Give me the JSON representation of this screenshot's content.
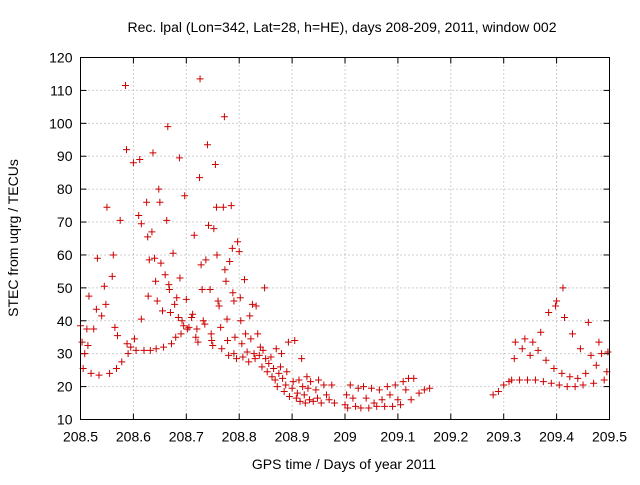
{
  "chart_data": {
    "type": "scatter",
    "title": "Rec. lpal (Lon=342, Lat=28, h=HE), days 208-209, 2011, window 002",
    "xlabel": "GPS time / Days of year 2011",
    "ylabel": "STEC from uqrg / TECUs",
    "xlim": [
      208.5,
      209.5
    ],
    "ylim": [
      10,
      120
    ],
    "xticks": [
      208.5,
      208.6,
      208.7,
      208.8,
      208.9,
      209,
      209.1,
      209.2,
      209.3,
      209.4,
      209.5
    ],
    "xtick_labels": [
      "208.5",
      "208.6",
      "208.7",
      "208.8",
      "208.9",
      "209",
      "209.1",
      "209.2",
      "209.3",
      "209.4",
      "209.5"
    ],
    "yticks": [
      10,
      20,
      30,
      40,
      50,
      60,
      70,
      80,
      90,
      100,
      110,
      120
    ],
    "ytick_labels": [
      "10",
      "20",
      "30",
      "40",
      "50",
      "60",
      "70",
      "80",
      "90",
      "100",
      "110",
      "120"
    ],
    "grid": true,
    "marker": "+",
    "color": "#cc0000",
    "series": [
      {
        "name": "STEC",
        "points": [
          [
            208.5,
            38.5
          ],
          [
            208.503,
            33.5
          ],
          [
            208.505,
            25.5
          ],
          [
            208.508,
            30.0
          ],
          [
            208.512,
            37.5
          ],
          [
            208.514,
            32.5
          ],
          [
            208.516,
            47.5
          ],
          [
            208.52,
            24.0
          ],
          [
            208.525,
            37.5
          ],
          [
            208.53,
            43.5
          ],
          [
            208.532,
            59.0
          ],
          [
            208.535,
            23.5
          ],
          [
            208.54,
            41.5
          ],
          [
            208.545,
            50.5
          ],
          [
            208.548,
            45.0
          ],
          [
            208.55,
            74.5
          ],
          [
            208.555,
            24.0
          ],
          [
            208.56,
            53.5
          ],
          [
            208.562,
            60.0
          ],
          [
            208.565,
            38.0
          ],
          [
            208.568,
            25.5
          ],
          [
            208.57,
            35.5
          ],
          [
            208.575,
            70.5
          ],
          [
            208.578,
            27.5
          ],
          [
            208.585,
            111.5
          ],
          [
            208.587,
            92.0
          ],
          [
            208.588,
            33.0
          ],
          [
            208.59,
            30.0
          ],
          [
            208.595,
            32.0
          ],
          [
            208.6,
            88.0
          ],
          [
            208.602,
            34.5
          ],
          [
            208.605,
            31.0
          ],
          [
            208.61,
            72.0
          ],
          [
            208.612,
            89.0
          ],
          [
            208.615,
            69.5
          ],
          [
            208.615,
            40.5
          ],
          [
            208.62,
            31.0
          ],
          [
            208.625,
            76.0
          ],
          [
            208.627,
            65.5
          ],
          [
            208.628,
            47.5
          ],
          [
            208.63,
            58.5
          ],
          [
            208.632,
            31.0
          ],
          [
            208.635,
            67.0
          ],
          [
            208.637,
            91.0
          ],
          [
            208.64,
            59.0
          ],
          [
            208.642,
            52.0
          ],
          [
            208.643,
            31.5
          ],
          [
            208.645,
            46.0
          ],
          [
            208.648,
            80.0
          ],
          [
            208.65,
            76.0
          ],
          [
            208.652,
            57.5
          ],
          [
            208.655,
            43.0
          ],
          [
            208.657,
            32.0
          ],
          [
            208.66,
            54.0
          ],
          [
            208.663,
            70.5
          ],
          [
            208.665,
            99.0
          ],
          [
            208.667,
            51.0
          ],
          [
            208.668,
            49.5
          ],
          [
            208.67,
            42.5
          ],
          [
            208.672,
            33.0
          ],
          [
            208.675,
            60.5
          ],
          [
            208.678,
            45.0
          ],
          [
            208.68,
            35.0
          ],
          [
            208.682,
            47.0
          ],
          [
            208.685,
            41.0
          ],
          [
            208.687,
            89.5
          ],
          [
            208.688,
            53.0
          ],
          [
            208.69,
            36.0
          ],
          [
            208.692,
            40.0
          ],
          [
            208.695,
            38.5
          ],
          [
            208.697,
            78.0
          ],
          [
            208.7,
            46.5
          ],
          [
            208.702,
            37.5
          ],
          [
            208.705,
            38.0
          ],
          [
            208.71,
            41.0
          ],
          [
            208.712,
            42.0
          ],
          [
            208.715,
            66.0
          ],
          [
            208.718,
            35.0
          ],
          [
            208.72,
            37.5
          ],
          [
            208.722,
            33.5
          ],
          [
            208.725,
            83.5
          ],
          [
            208.726,
            113.5
          ],
          [
            208.728,
            57.0
          ],
          [
            208.73,
            49.5
          ],
          [
            208.732,
            40.0
          ],
          [
            208.735,
            39.0
          ],
          [
            208.737,
            58.5
          ],
          [
            208.74,
            93.5
          ],
          [
            208.742,
            69.0
          ],
          [
            208.745,
            49.5
          ],
          [
            208.747,
            36.0
          ],
          [
            208.748,
            34.0
          ],
          [
            208.75,
            32.5
          ],
          [
            208.752,
            68.0
          ],
          [
            208.755,
            87.5
          ],
          [
            208.757,
            74.5
          ],
          [
            208.758,
            60.0
          ],
          [
            208.76,
            46.0
          ],
          [
            208.762,
            44.5
          ],
          [
            208.765,
            38.0
          ],
          [
            208.767,
            31.5
          ],
          [
            208.77,
            74.5
          ],
          [
            208.772,
            102.0
          ],
          [
            208.773,
            55.5
          ],
          [
            208.775,
            52.0
          ],
          [
            208.777,
            40.5
          ],
          [
            208.778,
            34.0
          ],
          [
            208.78,
            29.5
          ],
          [
            208.782,
            58.0
          ],
          [
            208.785,
            75.0
          ],
          [
            208.787,
            62.0
          ],
          [
            208.788,
            48.5
          ],
          [
            208.79,
            46.0
          ],
          [
            208.79,
            30.0
          ],
          [
            208.792,
            35.0
          ],
          [
            208.795,
            28.5
          ],
          [
            208.797,
            64.0
          ],
          [
            208.8,
            61.0
          ],
          [
            208.802,
            47.0
          ],
          [
            208.803,
            40.0
          ],
          [
            208.805,
            33.0
          ],
          [
            208.807,
            29.0
          ],
          [
            208.81,
            52.5
          ],
          [
            208.812,
            36.0
          ],
          [
            208.815,
            30.5
          ],
          [
            208.818,
            27.5
          ],
          [
            208.82,
            41.5
          ],
          [
            208.822,
            34.5
          ],
          [
            208.825,
            45.0
          ],
          [
            208.828,
            30.0
          ],
          [
            208.83,
            28.5
          ],
          [
            208.832,
            44.5
          ],
          [
            208.835,
            36.0
          ],
          [
            208.838,
            29.5
          ],
          [
            208.84,
            32.0
          ],
          [
            208.843,
            26.0
          ],
          [
            208.845,
            31.0
          ],
          [
            208.848,
            50.0
          ],
          [
            208.85,
            28.5
          ],
          [
            208.853,
            24.5
          ],
          [
            208.856,
            27.0
          ],
          [
            208.86,
            29.0
          ],
          [
            208.862,
            23.0
          ],
          [
            208.865,
            25.5
          ],
          [
            208.868,
            22.0
          ],
          [
            208.87,
            31.5
          ],
          [
            208.872,
            20.0
          ],
          [
            208.875,
            24.0
          ],
          [
            208.878,
            26.0
          ],
          [
            208.88,
            30.0
          ],
          [
            208.882,
            22.5
          ],
          [
            208.885,
            18.5
          ],
          [
            208.888,
            20.5
          ],
          [
            208.89,
            24.5
          ],
          [
            208.893,
            33.5
          ],
          [
            208.895,
            17.0
          ],
          [
            208.9,
            19.5
          ],
          [
            208.902,
            21.5
          ],
          [
            208.905,
            34.0
          ],
          [
            208.908,
            16.5
          ],
          [
            208.91,
            18.0
          ],
          [
            208.913,
            22.0
          ],
          [
            208.915,
            15.5
          ],
          [
            208.918,
            28.5
          ],
          [
            208.92,
            20.0
          ],
          [
            208.923,
            17.5
          ],
          [
            208.925,
            15.0
          ],
          [
            208.928,
            23.0
          ],
          [
            208.93,
            19.5
          ],
          [
            208.933,
            16.0
          ],
          [
            208.935,
            21.5
          ],
          [
            208.94,
            15.5
          ],
          [
            208.945,
            19.0
          ],
          [
            208.948,
            16.5
          ],
          [
            208.95,
            22.0
          ],
          [
            208.955,
            15.0
          ],
          [
            208.96,
            20.5
          ],
          [
            208.965,
            17.5
          ],
          [
            208.97,
            16.0
          ],
          [
            208.975,
            20.5
          ],
          [
            208.98,
            15.0
          ],
          [
            209.0,
            14.5
          ],
          [
            209.003,
            17.5
          ],
          [
            209.005,
            13.5
          ],
          [
            209.01,
            20.5
          ],
          [
            209.015,
            16.5
          ],
          [
            209.02,
            14.0
          ],
          [
            209.025,
            19.5
          ],
          [
            209.03,
            13.5
          ],
          [
            209.035,
            20.0
          ],
          [
            209.04,
            16.5
          ],
          [
            209.045,
            13.5
          ],
          [
            209.05,
            19.5
          ],
          [
            209.055,
            15.0
          ],
          [
            209.06,
            14.0
          ],
          [
            209.065,
            19.0
          ],
          [
            209.07,
            16.0
          ],
          [
            209.075,
            14.0
          ],
          [
            209.08,
            20.0
          ],
          [
            209.085,
            17.5
          ],
          [
            209.09,
            14.0
          ],
          [
            209.095,
            20.5
          ],
          [
            209.1,
            16.0
          ],
          [
            209.105,
            14.5
          ],
          [
            209.11,
            21.5
          ],
          [
            209.115,
            19.0
          ],
          [
            209.12,
            22.5
          ],
          [
            209.125,
            16.0
          ],
          [
            209.13,
            22.5
          ],
          [
            209.14,
            18.0
          ],
          [
            209.15,
            19.0
          ],
          [
            209.16,
            19.5
          ],
          [
            209.28,
            17.5
          ],
          [
            209.29,
            18.5
          ],
          [
            209.3,
            20.5
          ],
          [
            209.31,
            21.5
          ],
          [
            209.315,
            22.0
          ],
          [
            209.32,
            28.5
          ],
          [
            209.322,
            33.5
          ],
          [
            209.33,
            22.0
          ],
          [
            209.335,
            31.5
          ],
          [
            209.34,
            34.5
          ],
          [
            209.345,
            22.0
          ],
          [
            209.35,
            29.5
          ],
          [
            209.355,
            33.5
          ],
          [
            209.36,
            22.0
          ],
          [
            209.365,
            31.0
          ],
          [
            209.37,
            36.5
          ],
          [
            209.375,
            21.5
          ],
          [
            209.38,
            28.0
          ],
          [
            209.385,
            42.5
          ],
          [
            209.39,
            21.0
          ],
          [
            209.395,
            25.5
          ],
          [
            209.398,
            44.5
          ],
          [
            209.4,
            46.0
          ],
          [
            209.405,
            20.5
          ],
          [
            209.41,
            24.0
          ],
          [
            209.412,
            50.0
          ],
          [
            209.415,
            41.0
          ],
          [
            209.42,
            20.0
          ],
          [
            209.425,
            23.0
          ],
          [
            209.43,
            36.0
          ],
          [
            209.435,
            20.0
          ],
          [
            209.44,
            22.5
          ],
          [
            209.445,
            31.5
          ],
          [
            209.45,
            20.5
          ],
          [
            209.455,
            24.0
          ],
          [
            209.46,
            39.5
          ],
          [
            209.465,
            29.5
          ],
          [
            209.47,
            21.0
          ],
          [
            209.475,
            26.5
          ],
          [
            209.48,
            33.5
          ],
          [
            209.485,
            30.0
          ],
          [
            209.49,
            22.0
          ],
          [
            209.495,
            24.5
          ],
          [
            209.497,
            30.5
          ]
        ]
      }
    ]
  }
}
